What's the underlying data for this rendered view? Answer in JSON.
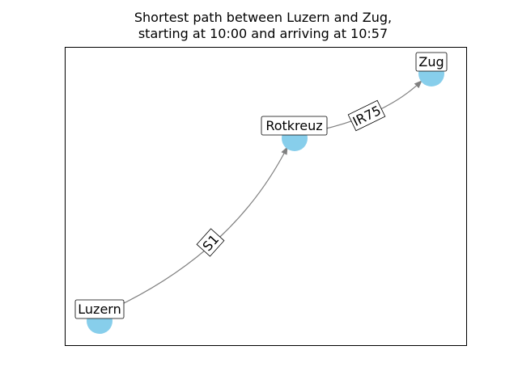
{
  "title": {
    "line1": "Shortest path between Luzern and Zug,",
    "line2": "starting at 10:00 and arriving at 10:57"
  },
  "colors": {
    "node": "#87ceeb",
    "edge": "#808080",
    "frame": "#000000"
  },
  "nodes": [
    {
      "id": "luzern",
      "label": "Luzern"
    },
    {
      "id": "rotkreuz",
      "label": "Rotkreuz"
    },
    {
      "id": "zug",
      "label": "Zug"
    }
  ],
  "edges": [
    {
      "from": "luzern",
      "to": "rotkreuz",
      "label": "S1"
    },
    {
      "from": "rotkreuz",
      "to": "zug",
      "label": "IR75"
    }
  ]
}
